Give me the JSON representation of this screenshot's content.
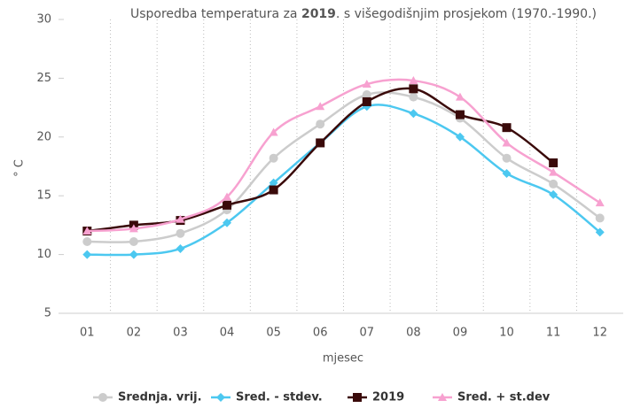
{
  "chart_data": {
    "type": "line",
    "title": [
      "Usporedba temperatura za ",
      "2019",
      ". s višegodišnjim prosjekom (1970.-1990.)"
    ],
    "x_label": "mjesec",
    "y_label": "° C",
    "categories": [
      "01",
      "02",
      "03",
      "04",
      "05",
      "06",
      "07",
      "08",
      "09",
      "10",
      "11",
      "12"
    ],
    "ylim": [
      5,
      30
    ],
    "yticks": [
      5,
      10,
      15,
      20,
      25,
      30
    ],
    "smooth": true,
    "series": [
      {
        "name": "Srednja. vrij.",
        "color": "#cccccc",
        "marker": "circle",
        "values": [
          11.1,
          11.1,
          11.8,
          13.8,
          18.2,
          21.1,
          23.6,
          23.4,
          21.6,
          18.2,
          16.0,
          13.1
        ]
      },
      {
        "name": "Sred. - stdev.",
        "color": "#4cc8f0",
        "marker": "diamond",
        "values": [
          10.0,
          10.0,
          10.5,
          12.7,
          16.1,
          19.5,
          22.6,
          22.0,
          20.0,
          16.9,
          15.1,
          11.9
        ]
      },
      {
        "name": "2019",
        "color": "#3a0a0a",
        "marker": "square",
        "values": [
          12.0,
          12.5,
          12.9,
          14.2,
          15.5,
          19.5,
          23.0,
          24.1,
          21.9,
          20.8,
          17.8,
          null
        ]
      },
      {
        "name": "Sred. + st.dev",
        "color": "#f7a1d0",
        "marker": "triangle",
        "values": [
          12.0,
          12.2,
          13.0,
          14.9,
          20.4,
          22.6,
          24.5,
          24.8,
          23.4,
          19.5,
          17.0,
          14.4
        ]
      }
    ]
  }
}
